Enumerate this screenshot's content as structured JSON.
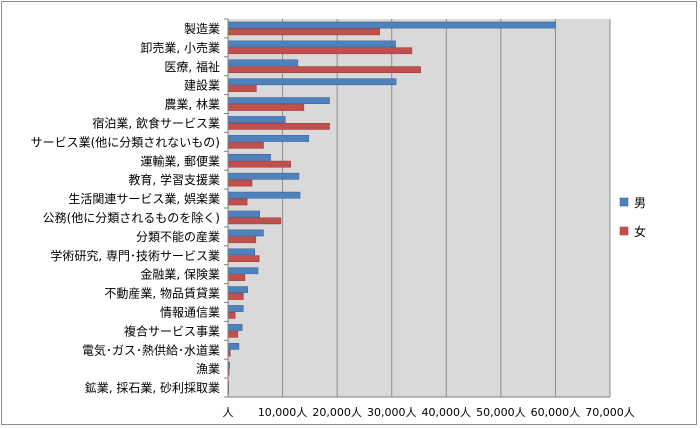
{
  "chart_data": {
    "type": "bar",
    "orientation": "horizontal",
    "title": "",
    "xlabel": "",
    "ylabel": "",
    "categories": [
      "製造業",
      "卸売業, 小売業",
      "医療, 福祉",
      "建設業",
      "農業, 林業",
      "宿泊業, 飲食サービス業",
      "サービス業(他に分類されないもの)",
      "運輸業, 郵便業",
      "教育, 学習支援業",
      "生活関連サービス業, 娯楽業",
      "公務(他に分類されるものを除く)",
      "分類不能の産業",
      "学術研究, 専門･技術サービス業",
      "金融業, 保険業",
      "不動産業, 物品賃貸業",
      "情報通信業",
      "複合サービス事業",
      "電気･ガス･熱供給･水道業",
      "漁業",
      "鉱業, 採石業, 砂利採取業"
    ],
    "series": [
      {
        "name": "男",
        "color": "#4f81bd",
        "values": [
          60000,
          30700,
          12800,
          30800,
          18600,
          10500,
          14800,
          7800,
          13000,
          13200,
          5800,
          6500,
          4900,
          5500,
          3600,
          2800,
          2600,
          2000,
          300,
          100
        ]
      },
      {
        "name": "女",
        "color": "#c0504d",
        "values": [
          27800,
          33700,
          35300,
          5200,
          13900,
          18600,
          6500,
          11500,
          4400,
          3500,
          9700,
          5100,
          5700,
          3100,
          2800,
          1300,
          1800,
          400,
          200,
          30
        ]
      }
    ],
    "x_ticks": [
      "人",
      "10,000人",
      "20,000人",
      "30,000人",
      "40,000人",
      "50,000人",
      "60,000人",
      "70,000人"
    ],
    "xlim": [
      0,
      70000
    ],
    "grid": true,
    "legend_position": "right"
  }
}
